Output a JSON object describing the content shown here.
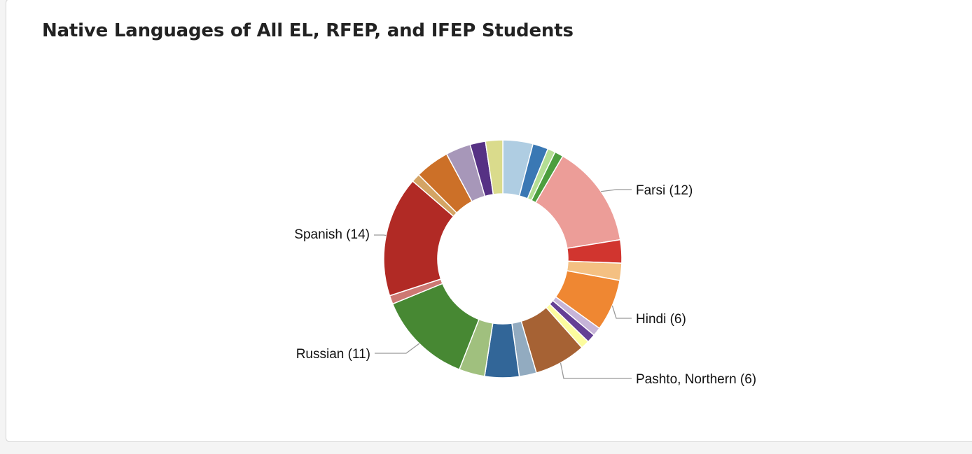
{
  "card": {
    "title": "Native Languages of All EL, RFEP, and IFEP Students"
  },
  "chart_data": {
    "type": "pie",
    "subtype": "donut",
    "title": "Native Languages of All EL, RFEP, and IFEP Students",
    "start_angle_deg": 0,
    "slices": [
      {
        "value": 3.5,
        "color": "#afcde2",
        "label": ""
      },
      {
        "value": 1.8,
        "color": "#3a78b4",
        "label": ""
      },
      {
        "value": 0.9,
        "color": "#b4de94",
        "label": ""
      },
      {
        "value": 1.0,
        "color": "#4c9e3e",
        "label": ""
      },
      {
        "value": 12,
        "color": "#ec9d98",
        "label": "Farsi (12)"
      },
      {
        "value": 2.7,
        "color": "#d1352f",
        "label": ""
      },
      {
        "value": 2.0,
        "color": "#f4c082",
        "label": ""
      },
      {
        "value": 6,
        "color": "#ef8732",
        "label": "Hindi (6)"
      },
      {
        "value": 1.0,
        "color": "#c6b4d8",
        "label": ""
      },
      {
        "value": 1.0,
        "color": "#643f94",
        "label": ""
      },
      {
        "value": 1.0,
        "color": "#fcfc9e",
        "label": ""
      },
      {
        "value": 6,
        "color": "#a66234",
        "label": "Pashto, Northern (6)"
      },
      {
        "value": 2.0,
        "color": "#92abc0",
        "label": ""
      },
      {
        "value": 4.0,
        "color": "#326698",
        "label": ""
      },
      {
        "value": 3.0,
        "color": "#a0c07e",
        "label": ""
      },
      {
        "value": 11,
        "color": "#478833",
        "label": "Russian (11)"
      },
      {
        "value": 1.0,
        "color": "#cd7873",
        "label": ""
      },
      {
        "value": 14,
        "color": "#b12a25",
        "label": "Spanish (14)"
      },
      {
        "value": 1.0,
        "color": "#d4a464",
        "label": ""
      },
      {
        "value": 4.0,
        "color": "#cc7028",
        "label": ""
      },
      {
        "value": 2.9,
        "color": "#a797b9",
        "label": ""
      },
      {
        "value": 1.8,
        "color": "#563184",
        "label": ""
      },
      {
        "value": 2.0,
        "color": "#dadb8c",
        "label": ""
      }
    ]
  }
}
